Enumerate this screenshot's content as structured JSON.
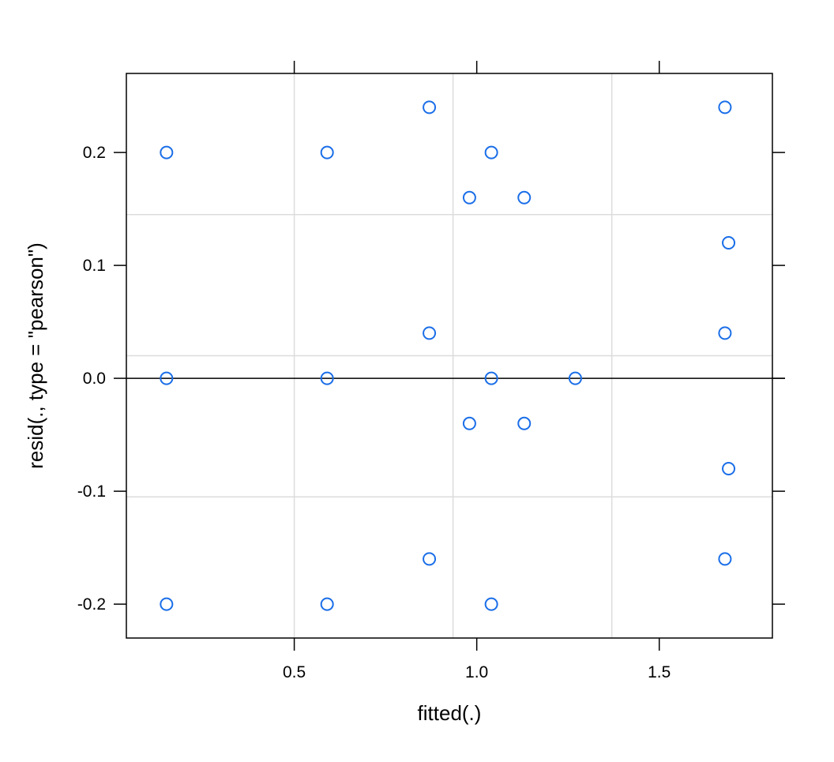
{
  "chart_data": {
    "type": "scatter",
    "title": "",
    "xlabel": "fitted(.)",
    "ylabel": "resid(., type = \"pearson\")",
    "xlim": [
      0.04,
      1.81
    ],
    "ylim": [
      -0.23,
      0.27
    ],
    "x_ticks": [
      0.5,
      1.0,
      1.5
    ],
    "x_tick_labels": [
      "0.5",
      "1.0",
      "1.5"
    ],
    "y_ticks": [
      -0.2,
      -0.1,
      0.0,
      0.1,
      0.2
    ],
    "y_tick_labels": [
      "-0.2",
      "-0.1",
      "0.0",
      "0.1",
      "0.2"
    ],
    "grid": true,
    "grid_x": [
      0.5,
      0.935,
      1.37
    ],
    "grid_y": [
      -0.105,
      0.02,
      0.145
    ],
    "reference_line_y": 0.0,
    "marker_color": "#1a6ee8",
    "series": [
      {
        "points": [
          {
            "x": 0.15,
            "y": 0.2
          },
          {
            "x": 0.15,
            "y": 0.0
          },
          {
            "x": 0.15,
            "y": -0.2
          },
          {
            "x": 0.59,
            "y": 0.2
          },
          {
            "x": 0.59,
            "y": 0.0
          },
          {
            "x": 0.59,
            "y": -0.2
          },
          {
            "x": 0.87,
            "y": 0.24
          },
          {
            "x": 0.87,
            "y": 0.04
          },
          {
            "x": 0.87,
            "y": -0.16
          },
          {
            "x": 0.98,
            "y": 0.16
          },
          {
            "x": 0.98,
            "y": -0.04
          },
          {
            "x": 1.04,
            "y": 0.2
          },
          {
            "x": 1.04,
            "y": 0.0
          },
          {
            "x": 1.04,
            "y": -0.2
          },
          {
            "x": 1.13,
            "y": 0.16
          },
          {
            "x": 1.13,
            "y": -0.04
          },
          {
            "x": 1.27,
            "y": 0.0
          },
          {
            "x": 1.68,
            "y": 0.24
          },
          {
            "x": 1.68,
            "y": 0.04
          },
          {
            "x": 1.68,
            "y": -0.16
          },
          {
            "x": 1.69,
            "y": 0.12
          },
          {
            "x": 1.69,
            "y": -0.08
          }
        ]
      }
    ]
  }
}
